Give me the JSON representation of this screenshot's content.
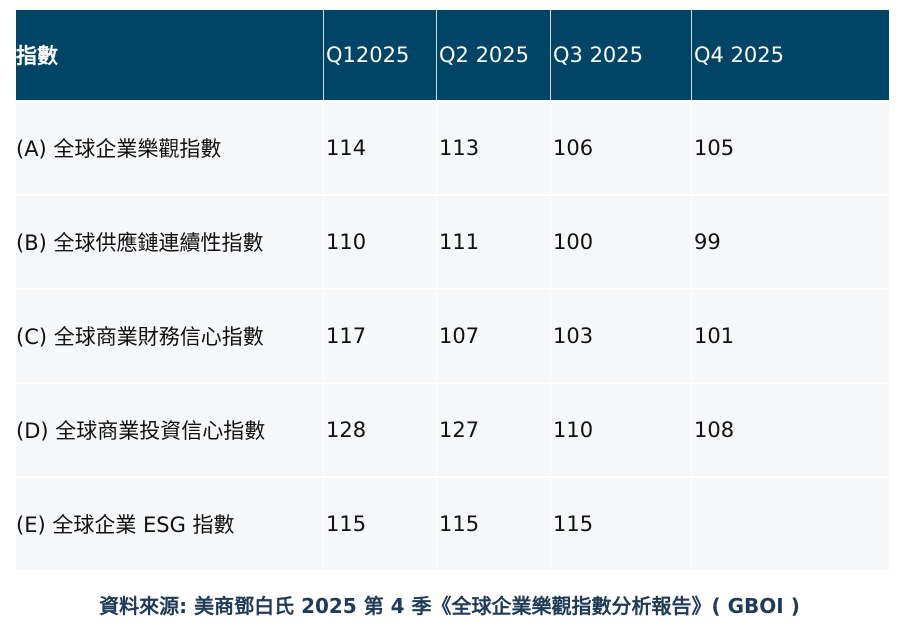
{
  "table": {
    "headers": [
      "指數",
      "Q12025",
      "Q2 2025",
      "Q3 2025",
      "Q4 2025"
    ],
    "rows": [
      [
        "(A) 全球企業樂觀指數",
        "114",
        "113",
        "106",
        "105"
      ],
      [
        "(B) 全球供應鏈連續性指數",
        "110",
        "111",
        "100",
        "99"
      ],
      [
        "(C) 全球商業財務信心指數",
        "117",
        "107",
        "103",
        "101"
      ],
      [
        "(D) 全球商業投資信心指數",
        "128",
        "127",
        "110",
        "108"
      ],
      [
        "(E) 全球企業 ESG 指數",
        "115",
        "115",
        "115",
        ""
      ]
    ]
  },
  "source": "資料來源: 美商鄧白氏 2025 第 4 季《全球企業樂觀指數分析報告》( GBOI )",
  "colors": {
    "header_bg": "#004466",
    "row_bg": "#f6f7f9",
    "caption": "#1f3b57"
  }
}
